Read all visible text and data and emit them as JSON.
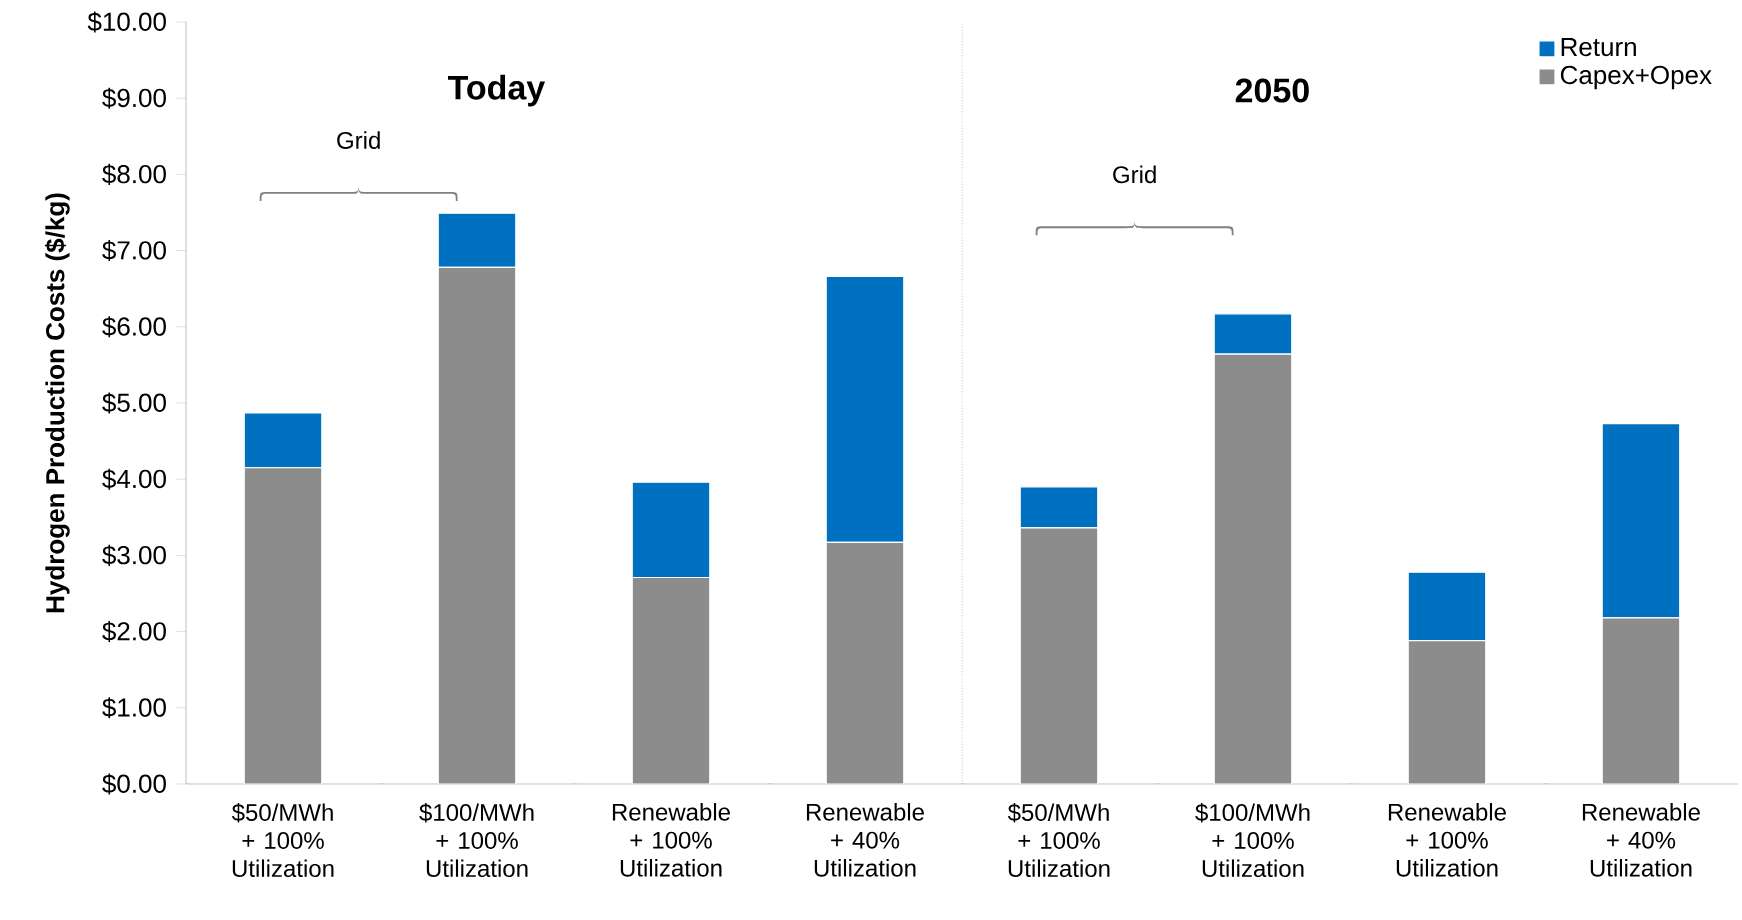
{
  "chart_data": {
    "type": "bar",
    "stacked": true,
    "ylabel": "Hydrogen Production Costs ($/kg)",
    "categories": [
      "$50/MWh + 100% Utilization",
      "$100/MWh + 100% Utilization",
      "Renewable + 100% Utilization",
      "Renewable + 40% Utilization",
      "$50/MWh + 100% Utilization",
      "$100/MWh + 100% Utilization",
      "Renewable + 100% Utilization",
      "Renewable + 40% Utilization"
    ],
    "series": [
      {
        "name": "Capex+Opex",
        "color": "#8c8c8c",
        "values": [
          4.15,
          6.78,
          2.71,
          3.17,
          3.36,
          5.64,
          1.88,
          2.18
        ]
      },
      {
        "name": "Return",
        "color": "#0070c0",
        "values": [
          0.72,
          0.71,
          1.25,
          3.49,
          0.54,
          0.53,
          0.9,
          2.55
        ]
      }
    ],
    "ylim": [
      0,
      10
    ],
    "yticks": [
      {
        "value": 0,
        "label": "$0.00"
      },
      {
        "value": 1,
        "label": "$1.00"
      },
      {
        "value": 2,
        "label": "$2.00"
      },
      {
        "value": 3,
        "label": "$3.00"
      },
      {
        "value": 4,
        "label": "$4.00"
      },
      {
        "value": 5,
        "label": "$5.00"
      },
      {
        "value": 6,
        "label": "$6.00"
      },
      {
        "value": 7,
        "label": "$7.00"
      },
      {
        "value": 8,
        "label": "$8.00"
      },
      {
        "value": 9,
        "label": "$9.00"
      },
      {
        "value": 10,
        "label": "$10.00"
      }
    ],
    "annotations": [
      "Today",
      "2050",
      "Grid",
      "Grid"
    ],
    "legend": "top right",
    "grid": false
  }
}
